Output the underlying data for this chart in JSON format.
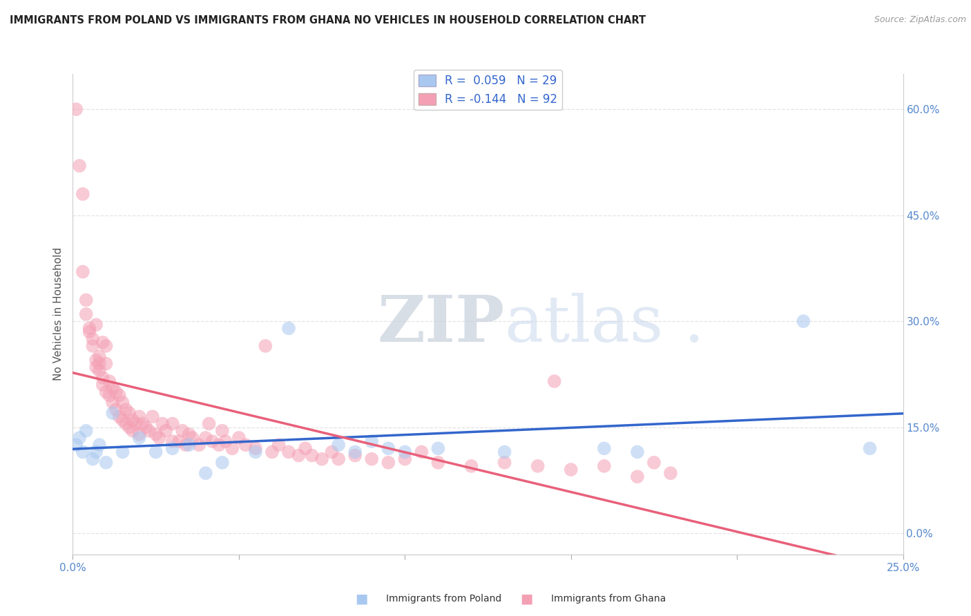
{
  "title": "IMMIGRANTS FROM POLAND VS IMMIGRANTS FROM GHANA NO VEHICLES IN HOUSEHOLD CORRELATION CHART",
  "source": "Source: ZipAtlas.com",
  "ylabel": "No Vehicles in Household",
  "ylabel_right_ticks": [
    "60.0%",
    "45.0%",
    "30.0%",
    "15.0%",
    "0.0%"
  ],
  "ylabel_right_vals": [
    0.6,
    0.45,
    0.3,
    0.15,
    0.0
  ],
  "xmin": 0.0,
  "xmax": 0.25,
  "ymin": -0.03,
  "ymax": 0.65,
  "legend_poland_r": "R =  0.059",
  "legend_poland_n": "N = 29",
  "legend_ghana_r": "R = -0.144",
  "legend_ghana_n": "N = 92",
  "poland_color": "#a8c8f0",
  "ghana_color": "#f4a0b4",
  "poland_line_color": "#3366cc",
  "ghana_line_color": "#e8607a",
  "poland_scatter": [
    [
      0.001,
      0.125
    ],
    [
      0.002,
      0.135
    ],
    [
      0.003,
      0.115
    ],
    [
      0.004,
      0.145
    ],
    [
      0.006,
      0.105
    ],
    [
      0.007,
      0.115
    ],
    [
      0.008,
      0.125
    ],
    [
      0.01,
      0.1
    ],
    [
      0.012,
      0.17
    ],
    [
      0.015,
      0.115
    ],
    [
      0.02,
      0.135
    ],
    [
      0.025,
      0.115
    ],
    [
      0.03,
      0.12
    ],
    [
      0.035,
      0.125
    ],
    [
      0.04,
      0.085
    ],
    [
      0.045,
      0.1
    ],
    [
      0.055,
      0.115
    ],
    [
      0.065,
      0.29
    ],
    [
      0.08,
      0.125
    ],
    [
      0.085,
      0.115
    ],
    [
      0.09,
      0.13
    ],
    [
      0.095,
      0.12
    ],
    [
      0.1,
      0.115
    ],
    [
      0.11,
      0.12
    ],
    [
      0.13,
      0.115
    ],
    [
      0.16,
      0.12
    ],
    [
      0.17,
      0.115
    ],
    [
      0.22,
      0.3
    ],
    [
      0.24,
      0.12
    ]
  ],
  "ghana_scatter": [
    [
      0.001,
      0.6
    ],
    [
      0.002,
      0.52
    ],
    [
      0.003,
      0.48
    ],
    [
      0.003,
      0.37
    ],
    [
      0.004,
      0.33
    ],
    [
      0.004,
      0.31
    ],
    [
      0.005,
      0.29
    ],
    [
      0.005,
      0.285
    ],
    [
      0.006,
      0.275
    ],
    [
      0.006,
      0.265
    ],
    [
      0.007,
      0.245
    ],
    [
      0.007,
      0.235
    ],
    [
      0.007,
      0.295
    ],
    [
      0.008,
      0.25
    ],
    [
      0.008,
      0.24
    ],
    [
      0.008,
      0.23
    ],
    [
      0.009,
      0.22
    ],
    [
      0.009,
      0.27
    ],
    [
      0.009,
      0.21
    ],
    [
      0.01,
      0.265
    ],
    [
      0.01,
      0.24
    ],
    [
      0.01,
      0.2
    ],
    [
      0.011,
      0.215
    ],
    [
      0.011,
      0.195
    ],
    [
      0.012,
      0.205
    ],
    [
      0.012,
      0.185
    ],
    [
      0.013,
      0.2
    ],
    [
      0.013,
      0.175
    ],
    [
      0.014,
      0.195
    ],
    [
      0.014,
      0.165
    ],
    [
      0.015,
      0.185
    ],
    [
      0.015,
      0.16
    ],
    [
      0.016,
      0.175
    ],
    [
      0.016,
      0.155
    ],
    [
      0.017,
      0.17
    ],
    [
      0.017,
      0.15
    ],
    [
      0.018,
      0.16
    ],
    [
      0.018,
      0.145
    ],
    [
      0.019,
      0.155
    ],
    [
      0.02,
      0.165
    ],
    [
      0.02,
      0.14
    ],
    [
      0.021,
      0.155
    ],
    [
      0.022,
      0.15
    ],
    [
      0.023,
      0.145
    ],
    [
      0.024,
      0.165
    ],
    [
      0.025,
      0.14
    ],
    [
      0.026,
      0.135
    ],
    [
      0.027,
      0.155
    ],
    [
      0.028,
      0.145
    ],
    [
      0.03,
      0.13
    ],
    [
      0.03,
      0.155
    ],
    [
      0.032,
      0.13
    ],
    [
      0.033,
      0.145
    ],
    [
      0.034,
      0.125
    ],
    [
      0.035,
      0.14
    ],
    [
      0.036,
      0.135
    ],
    [
      0.038,
      0.125
    ],
    [
      0.04,
      0.135
    ],
    [
      0.041,
      0.155
    ],
    [
      0.042,
      0.13
    ],
    [
      0.044,
      0.125
    ],
    [
      0.045,
      0.145
    ],
    [
      0.046,
      0.13
    ],
    [
      0.048,
      0.12
    ],
    [
      0.05,
      0.135
    ],
    [
      0.052,
      0.125
    ],
    [
      0.055,
      0.12
    ],
    [
      0.058,
      0.265
    ],
    [
      0.06,
      0.115
    ],
    [
      0.062,
      0.125
    ],
    [
      0.065,
      0.115
    ],
    [
      0.068,
      0.11
    ],
    [
      0.07,
      0.12
    ],
    [
      0.072,
      0.11
    ],
    [
      0.075,
      0.105
    ],
    [
      0.078,
      0.115
    ],
    [
      0.08,
      0.105
    ],
    [
      0.085,
      0.11
    ],
    [
      0.09,
      0.105
    ],
    [
      0.095,
      0.1
    ],
    [
      0.1,
      0.105
    ],
    [
      0.105,
      0.115
    ],
    [
      0.11,
      0.1
    ],
    [
      0.12,
      0.095
    ],
    [
      0.13,
      0.1
    ],
    [
      0.14,
      0.095
    ],
    [
      0.145,
      0.215
    ],
    [
      0.15,
      0.09
    ],
    [
      0.16,
      0.095
    ],
    [
      0.17,
      0.08
    ],
    [
      0.175,
      0.1
    ],
    [
      0.18,
      0.085
    ]
  ],
  "watermark_zip": "ZIP",
  "watermark_atlas": "atlas",
  "watermark_dot": " .",
  "background_color": "#ffffff",
  "grid_color": "#dddddd",
  "legend_label_poland": "Immigrants from Poland",
  "legend_label_ghana": "Immigrants from Ghana"
}
